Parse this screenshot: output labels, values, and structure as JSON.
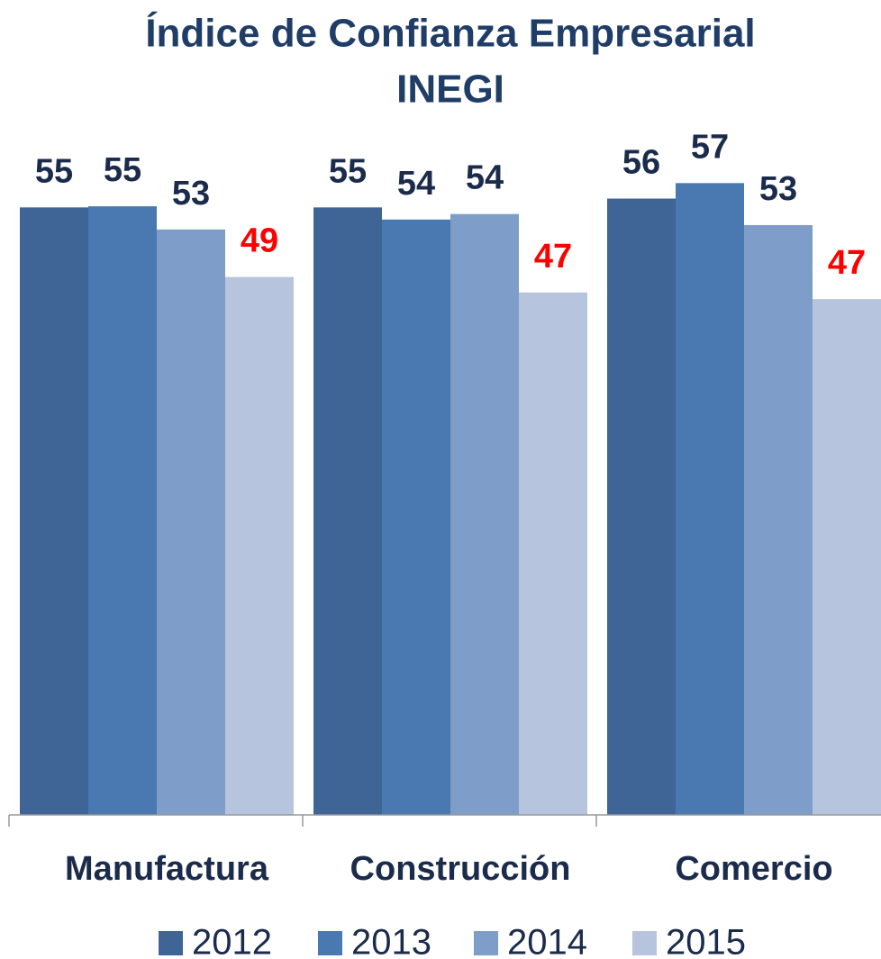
{
  "chart_data": {
    "type": "bar",
    "title": "Índice de Confianza Empresarial",
    "subtitle": "INEGI",
    "categories": [
      "Manufactura",
      "Construcción",
      "Comercio"
    ],
    "series": [
      {
        "name": "2012",
        "color": "#3e6596",
        "label_color": "#1b2b4b",
        "values": [
          55.0,
          55.0,
          55.8
        ],
        "value_labels": [
          "55",
          "55",
          "56"
        ]
      },
      {
        "name": "2013",
        "color": "#4a78b0",
        "label_color": "#1b2b4b",
        "values": [
          55.1,
          53.9,
          57.2
        ],
        "value_labels": [
          "55",
          "54",
          "57"
        ]
      },
      {
        "name": "2014",
        "color": "#7f9dc9",
        "label_color": "#1b2b4b",
        "values": [
          53.0,
          54.4,
          53.4
        ],
        "value_labels": [
          "53",
          "54",
          "53"
        ]
      },
      {
        "name": "2015",
        "color": "#b7c4de",
        "label_color": "#ff0000",
        "values": [
          48.7,
          47.3,
          46.7
        ],
        "value_labels": [
          "49",
          "47",
          "47"
        ]
      }
    ],
    "ylim": [
      0,
      60
    ],
    "legend": "bottom"
  }
}
